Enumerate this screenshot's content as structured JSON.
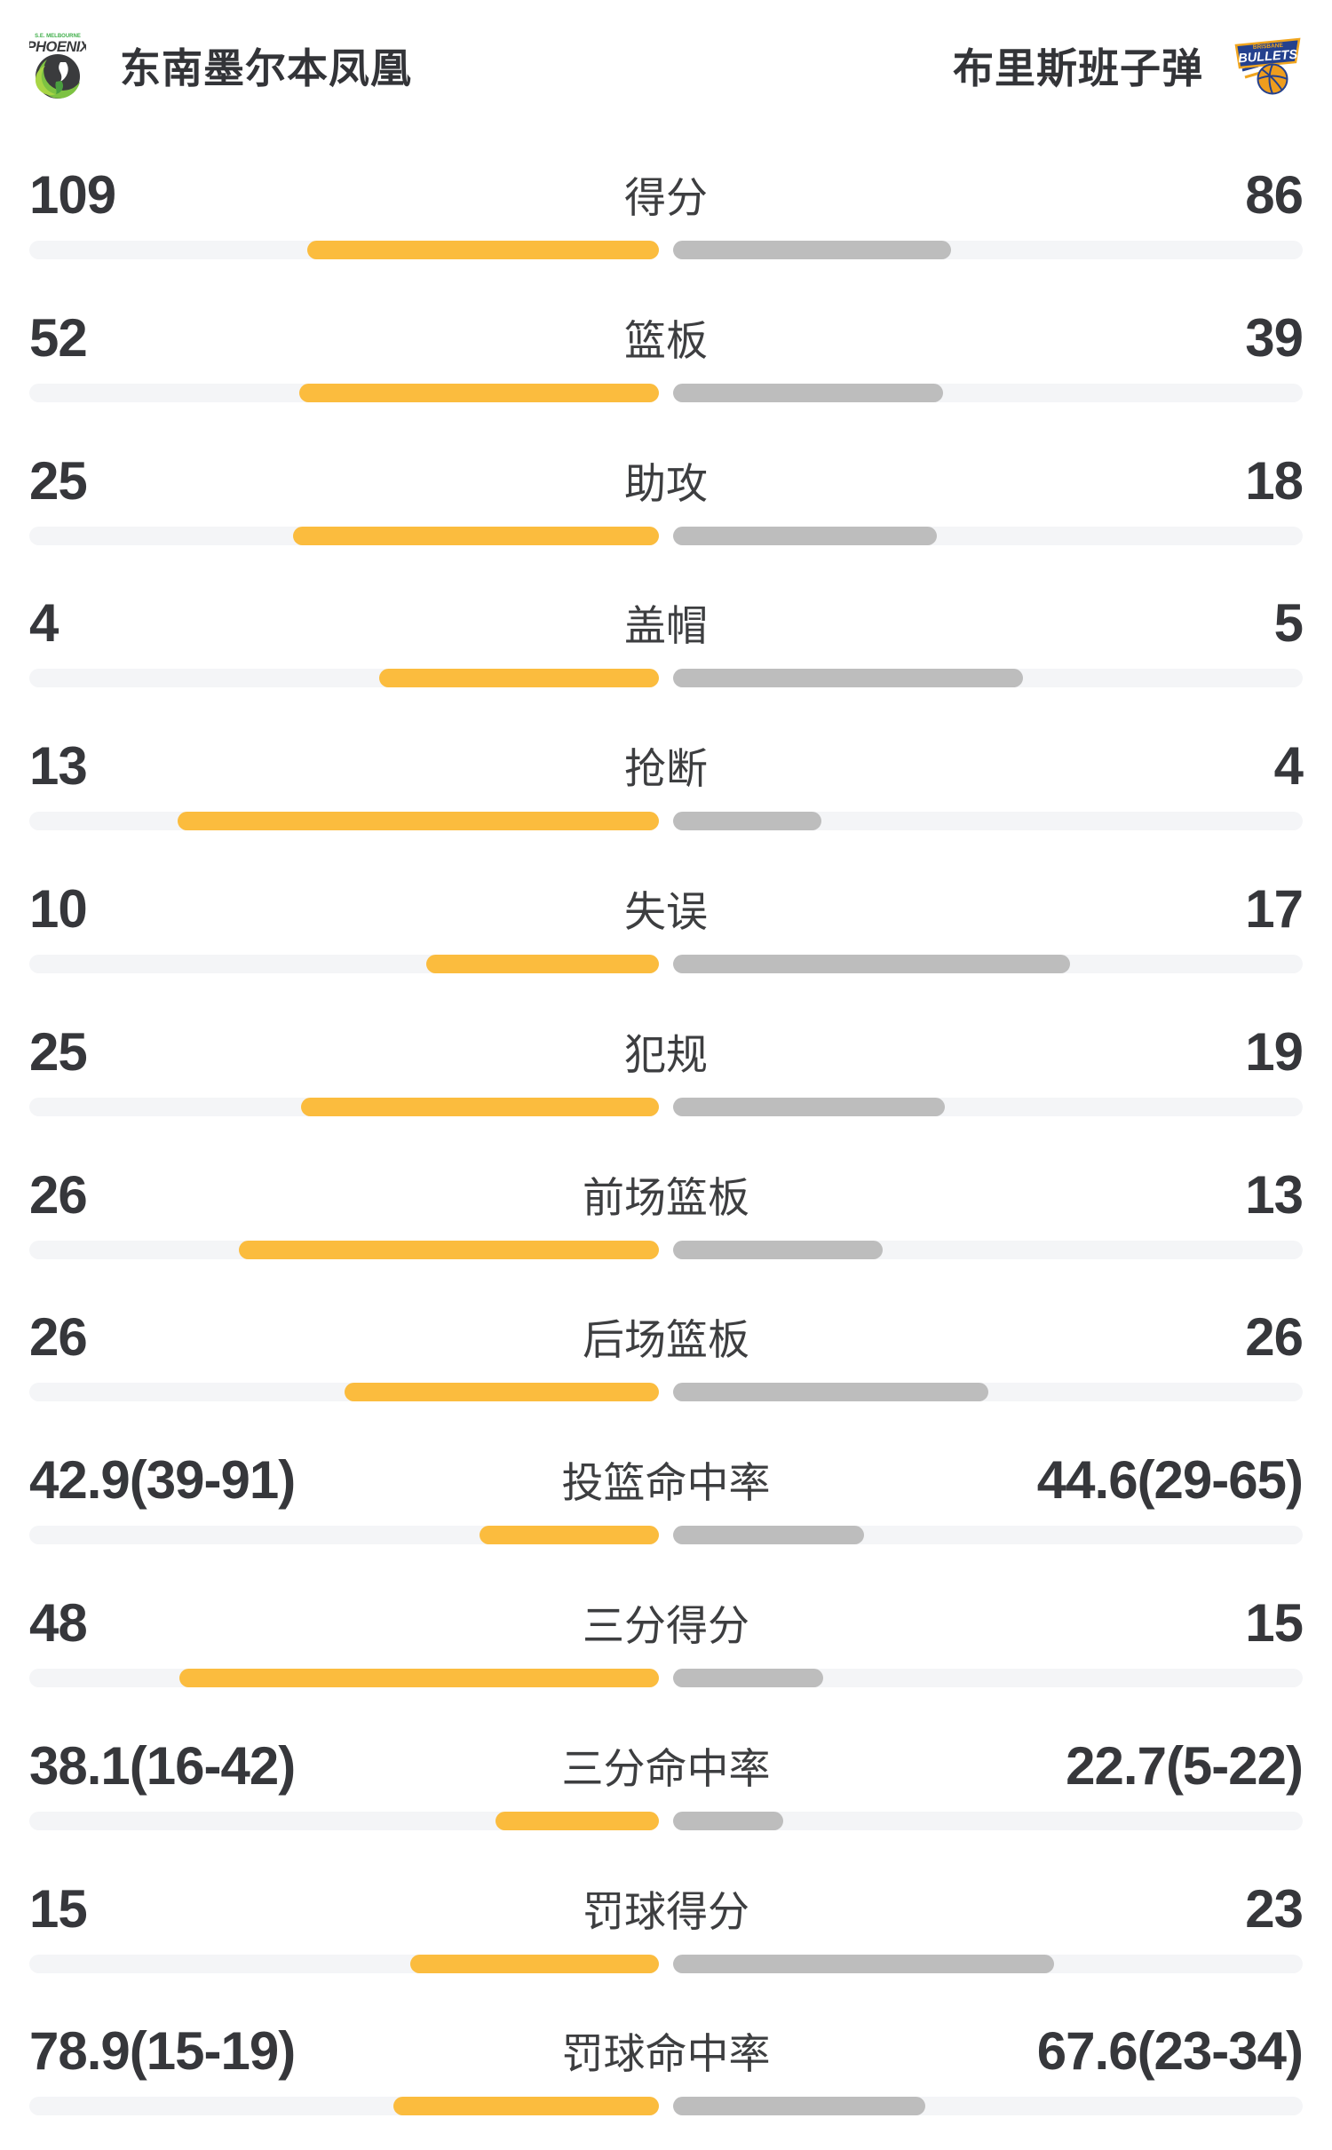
{
  "header": {
    "home": {
      "name": "东南墨尔本凤凰",
      "logo": "se-melbourne-phoenix",
      "logo_text_top": "S.E. MELBOURNE",
      "logo_text_main": "PHOENIX"
    },
    "away": {
      "name": "布里斯班子弹",
      "logo": "brisbane-bullets",
      "logo_text_top": "BRISBANE",
      "logo_text_main": "BULLETS"
    }
  },
  "colors": {
    "home_bar": "#fbbc3e",
    "away_bar": "#bdbdbd",
    "bar_track": "#f4f5f7",
    "value_text": "#36373b",
    "label_text": "#3d3e40",
    "phoenix_green": "#7dc242",
    "bullets_navy": "#24418e",
    "bullets_gold": "#f0a51f"
  },
  "stats": [
    {
      "label": "得分",
      "home": "109",
      "away": "86",
      "home_bar_pct": 55.9,
      "away_bar_pct": 44.1
    },
    {
      "label": "篮板",
      "home": "52",
      "away": "39",
      "home_bar_pct": 57.1,
      "away_bar_pct": 42.9
    },
    {
      "label": "助攻",
      "home": "25",
      "away": "18",
      "home_bar_pct": 58.1,
      "away_bar_pct": 41.9
    },
    {
      "label": "盖帽",
      "home": "4",
      "away": "5",
      "home_bar_pct": 44.4,
      "away_bar_pct": 55.6
    },
    {
      "label": "抢断",
      "home": "13",
      "away": "4",
      "home_bar_pct": 76.5,
      "away_bar_pct": 23.5
    },
    {
      "label": "失误",
      "home": "10",
      "away": "17",
      "home_bar_pct": 37.0,
      "away_bar_pct": 63.0
    },
    {
      "label": "犯规",
      "home": "25",
      "away": "19",
      "home_bar_pct": 56.8,
      "away_bar_pct": 43.2
    },
    {
      "label": "前场篮板",
      "home": "26",
      "away": "13",
      "home_bar_pct": 66.7,
      "away_bar_pct": 33.3
    },
    {
      "label": "后场篮板",
      "home": "26",
      "away": "26",
      "home_bar_pct": 50.0,
      "away_bar_pct": 50.0
    },
    {
      "label": "投篮命中率",
      "home": "42.9(39-91)",
      "away": "44.6(29-65)",
      "home_bar_pct": 28.5,
      "away_bar_pct": 30.3
    },
    {
      "label": "三分得分",
      "home": "48",
      "away": "15",
      "home_bar_pct": 76.2,
      "away_bar_pct": 23.8
    },
    {
      "label": "三分命中率",
      "home": "38.1(16-42)",
      "away": "22.7(5-22)",
      "home_bar_pct": 26.0,
      "away_bar_pct": 17.5
    },
    {
      "label": "罚球得分",
      "home": "15",
      "away": "23",
      "home_bar_pct": 39.5,
      "away_bar_pct": 60.5
    },
    {
      "label": "罚球命中率",
      "home": "78.9(15-19)",
      "away": "67.6(23-34)",
      "home_bar_pct": 42.2,
      "away_bar_pct": 40.0
    }
  ],
  "chart_data": {
    "type": "bar",
    "orientation": "horizontal-paired",
    "categories": [
      "得分",
      "篮板",
      "助攻",
      "盖帽",
      "抢断",
      "失误",
      "犯规",
      "前场篮板",
      "后场篮板",
      "投篮命中率",
      "三分得分",
      "三分命中率",
      "罚球得分",
      "罚球命中率"
    ],
    "series": [
      {
        "name": "东南墨尔本凤凰",
        "values": [
          109,
          52,
          25,
          4,
          13,
          10,
          25,
          26,
          26,
          42.9,
          48,
          38.1,
          15,
          78.9
        ],
        "display": [
          "109",
          "52",
          "25",
          "4",
          "13",
          "10",
          "25",
          "26",
          "26",
          "42.9(39-91)",
          "48",
          "38.1(16-42)",
          "15",
          "78.9(15-19)"
        ]
      },
      {
        "name": "布里斯班子弹",
        "values": [
          86,
          39,
          18,
          5,
          4,
          17,
          19,
          13,
          26,
          44.6,
          15,
          22.7,
          23,
          67.6
        ],
        "display": [
          "86",
          "39",
          "18",
          "5",
          "4",
          "17",
          "19",
          "13",
          "26",
          "44.6(29-65)",
          "15",
          "22.7(5-22)",
          "23",
          "67.6(23-34)"
        ]
      }
    ],
    "legend_position": "top",
    "grid": false
  }
}
